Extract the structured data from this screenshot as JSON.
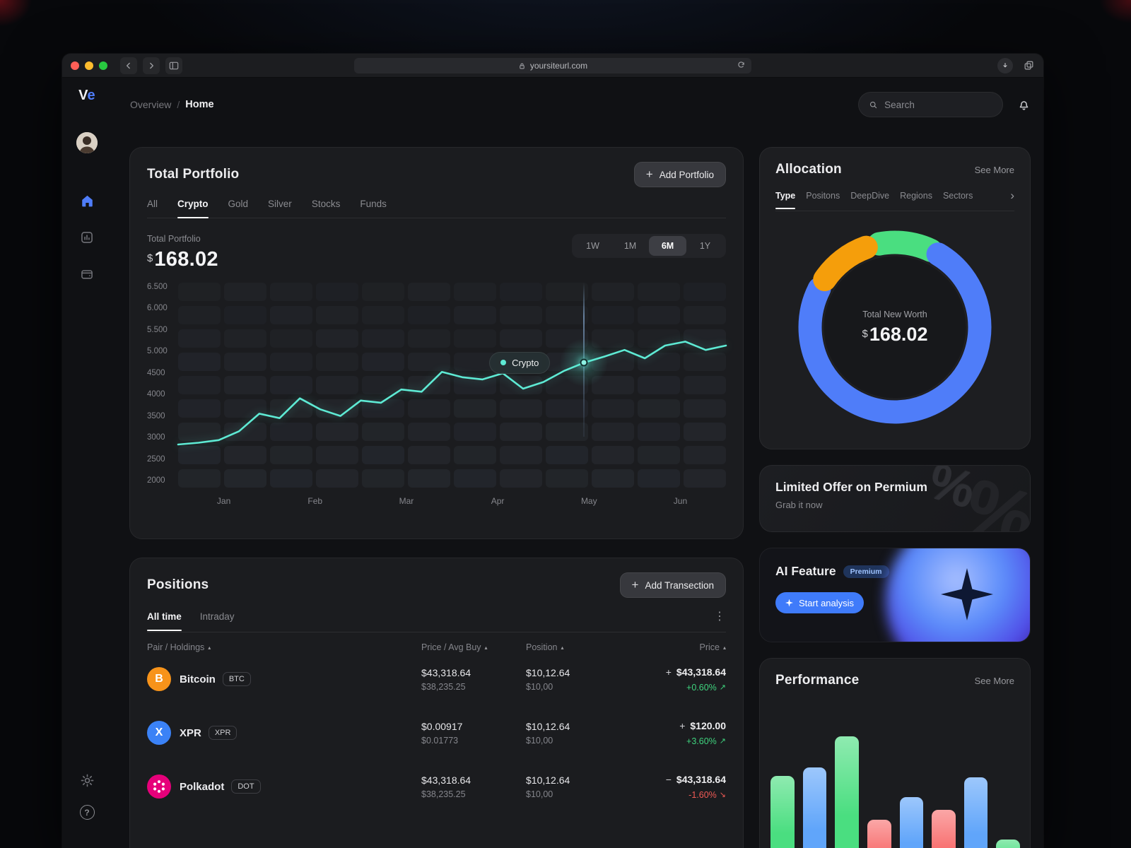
{
  "colors": {
    "accent_blue": "#4F7DF9",
    "teal": "#5EEAD4",
    "green": "#4ADE80",
    "red": "#F05A55",
    "orange": "#F59E0B",
    "bar_green": "#4ADE80",
    "bar_blue": "#60A5FA",
    "bar_red": "#F87171"
  },
  "browser": {
    "url": "yoursiteurl.com"
  },
  "sidebar": {
    "logo_v": "V",
    "logo_e": "e"
  },
  "header": {
    "breadcrumb_section": "Overview",
    "breadcrumb_separator": "/",
    "breadcrumb_page": "Home",
    "search_placeholder": "Search"
  },
  "portfolio": {
    "title": "Total Portfolio",
    "add_button": "Add Portfolio",
    "tabs": [
      "All",
      "Crypto",
      "Gold",
      "Silver",
      "Stocks",
      "Funds"
    ],
    "active_tab": "Crypto",
    "value_label": "Total Portfolio",
    "currency": "$",
    "value": "168.02",
    "ranges": [
      "1W",
      "1M",
      "6M",
      "1Y"
    ],
    "active_range": "6M"
  },
  "positions": {
    "title": "Positions",
    "add_button": "Add Transection",
    "tabs": [
      "All time",
      "Intraday"
    ],
    "active_tab": "All time",
    "columns": [
      "Pair / Holdings",
      "Price / Avg Buy",
      "Position",
      "Price"
    ],
    "rows": [
      {
        "name": "Bitcoin",
        "ticker": "BTC",
        "icon_color": "#F7931A",
        "icon_glyph": "B",
        "price": "$43,318.64",
        "avg_buy": "$38,235.25",
        "position": "$10,12.64",
        "position_sub": "$10,00",
        "sign": "+",
        "amount": "$43,318.64",
        "change": "+0.60%",
        "trend": "up"
      },
      {
        "name": "XPR",
        "ticker": "XPR",
        "icon_color": "#3B82F6",
        "icon_glyph": "X",
        "price": "$0.00917",
        "avg_buy": "$0.01773",
        "position": "$10,12.64",
        "position_sub": "$10,00",
        "sign": "+",
        "amount": "$120.00",
        "change": "+3.60%",
        "trend": "up"
      },
      {
        "name": "Polkadot",
        "ticker": "DOT",
        "icon_color": "#E6007A",
        "icon_glyph": "",
        "price": "$43,318.64",
        "avg_buy": "$38,235.25",
        "position": "$10,12.64",
        "position_sub": "$10,00",
        "sign": "−",
        "amount": "$43,318.64",
        "change": "-1.60%",
        "trend": "down"
      }
    ]
  },
  "allocation": {
    "title": "Allocation",
    "see_more": "See More",
    "tabs": [
      "Type",
      "Positons",
      "DeepDive",
      "Regions",
      "Sectors"
    ],
    "active_tab": "Type"
  },
  "offer": {
    "title": "Limited Offer on Permium",
    "subtitle": "Grab it now"
  },
  "ai": {
    "title": "AI Feature",
    "badge": "Premium",
    "button": "Start analysis"
  },
  "performance": {
    "title": "Performance",
    "see_more": "See More"
  },
  "icons": {
    "plus": "+",
    "kebab": "⋮",
    "chevron_right": "›",
    "sort": "▴",
    "trend_up": "↗",
    "trend_down": "↘",
    "sparkle": "✦",
    "percent": "%"
  },
  "chart_data": [
    {
      "type": "line",
      "title": "Total Portfolio (6M)",
      "series": [
        {
          "name": "Crypto",
          "values": [
            2900,
            2940,
            3000,
            3200,
            3600,
            3500,
            3950,
            3700,
            3550,
            3900,
            3850,
            4150,
            4100,
            4550,
            4430,
            4380,
            4520,
            4170,
            4320,
            4570,
            4760,
            4900,
            5050,
            4860,
            5150,
            5240,
            5050,
            5150
          ]
        }
      ],
      "x_labels": [
        "Jan",
        "Feb",
        "Mar",
        "Apr",
        "May",
        "Jun"
      ],
      "y_tick_labels": [
        "6.500",
        "6.000",
        "5.500",
        "5.000",
        "4500",
        "4000",
        "3500",
        "3000",
        "2500",
        "2000"
      ],
      "ylim": [
        2000,
        6500
      ],
      "highlight_index": 20,
      "highlight_label": "Crypto",
      "line_color": "#5EEAD4",
      "grid": "cell-matrix",
      "legend": "none"
    },
    {
      "type": "donut",
      "title": "Allocation by Type",
      "center_label": "Total New Worth",
      "center_currency": "$",
      "center_value": "168.02",
      "segments": [
        {
          "name": "blue",
          "value": 74,
          "color": "#4F7DF9"
        },
        {
          "name": "orange",
          "value": 10,
          "color": "#F59E0B"
        },
        {
          "name": "green",
          "value": 10,
          "color": "#4ADE80"
        }
      ]
    },
    {
      "type": "bar",
      "title": "Performance",
      "values": [
        74,
        80,
        102,
        43,
        59,
        50,
        73,
        29
      ],
      "colors": [
        "#4ADE80",
        "#60A5FA",
        "#4ADE80",
        "#F87171",
        "#60A5FA",
        "#F87171",
        "#60A5FA",
        "#4ADE80"
      ],
      "ymax": 110
    }
  ]
}
